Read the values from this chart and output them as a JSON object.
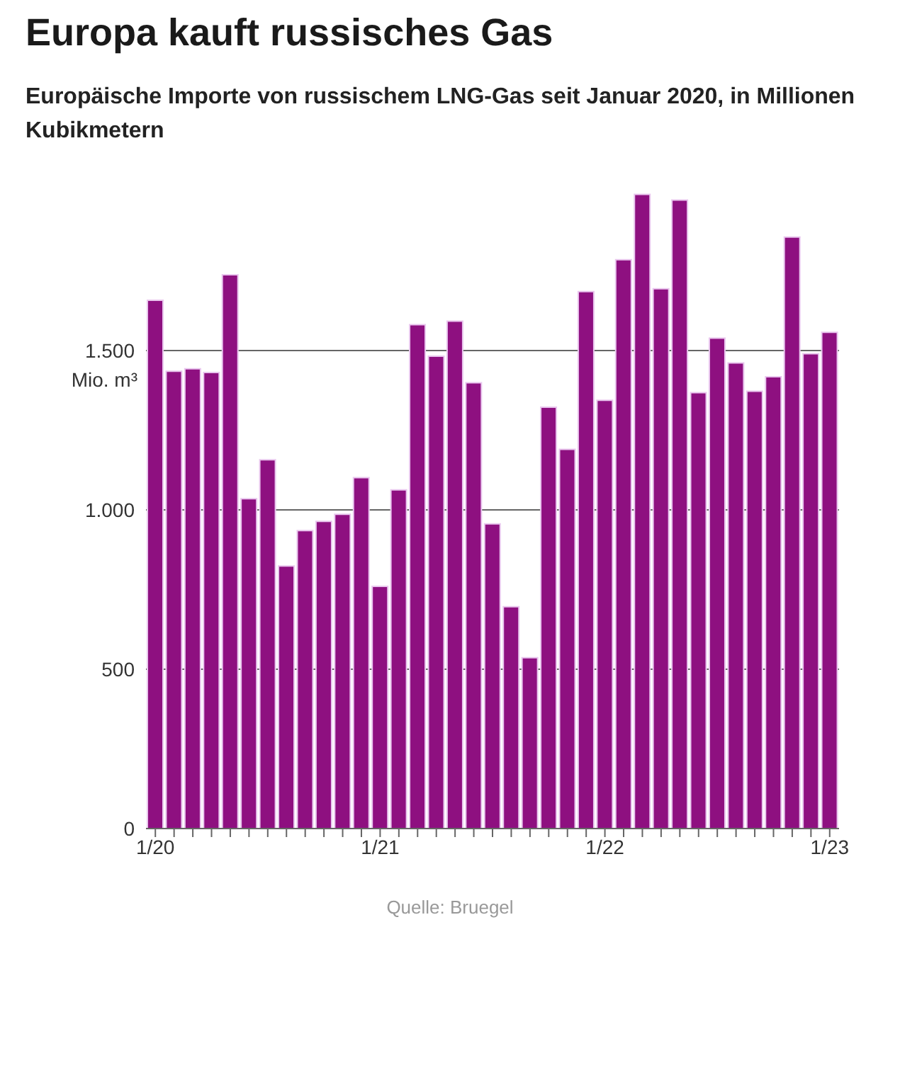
{
  "chart_data": {
    "type": "bar",
    "title": "Europa kauft russisches Gas",
    "subtitle": "Europäische Importe von russischem LNG-Gas seit Januar 2020, in Millionen Kubikmetern",
    "ylabel": "Mio. m³",
    "categories": [
      "1/20",
      null,
      null,
      null,
      null,
      null,
      null,
      null,
      null,
      null,
      null,
      null,
      "1/21",
      null,
      null,
      null,
      null,
      null,
      null,
      null,
      null,
      null,
      null,
      null,
      "1/22",
      null,
      null,
      null,
      null,
      null,
      null,
      null,
      null,
      null,
      null,
      null,
      "1/23"
    ],
    "values": [
      1658,
      1435,
      1443,
      1431,
      1738,
      1035,
      1157,
      824,
      935,
      964,
      986,
      1101,
      760,
      1063,
      1581,
      1482,
      1592,
      1399,
      956,
      696,
      536,
      1322,
      1190,
      1685,
      1344,
      1785,
      1990,
      1694,
      1972,
      1368,
      1539,
      1461,
      1372,
      1418,
      1856,
      1490,
      1557
    ],
    "color": "#8e1080",
    "ylim": [
      0,
      2000
    ],
    "yticks": [
      0,
      500,
      {
        "value": 1000,
        "label": "1.000"
      },
      {
        "value": 1500,
        "label": "1.500"
      }
    ],
    "grid": "y",
    "annotations": [
      "Quelle: Bruegel"
    ]
  }
}
